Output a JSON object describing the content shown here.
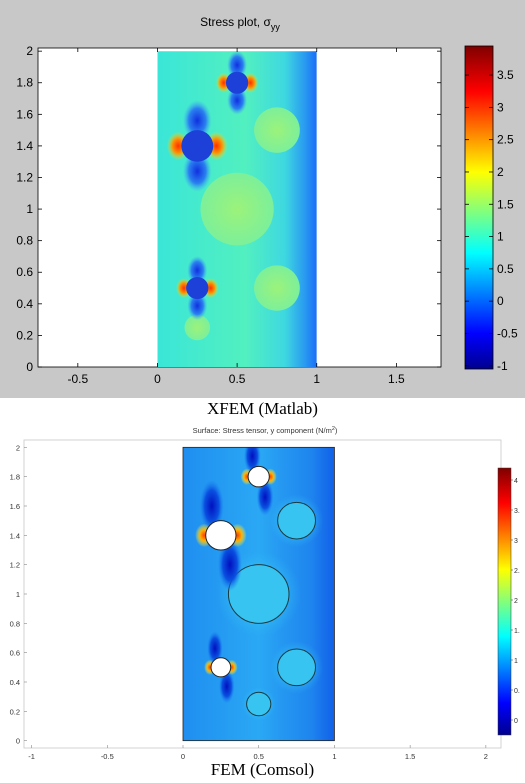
{
  "chart_data": [
    {
      "type": "heatmap",
      "title": "Stress plot, σyy",
      "title_main": "Stress plot, σ",
      "title_sub": "yy",
      "xlabel": "",
      "ylabel": "",
      "xlim": [
        -0.75,
        1.78
      ],
      "ylim": [
        0,
        2.02
      ],
      "xticks": [
        -0.5,
        0,
        0.5,
        1,
        1.5
      ],
      "xtick_labels": [
        "-0.5",
        "0",
        "0.5",
        "1",
        "1.5"
      ],
      "yticks": [
        0,
        0.2,
        0.4,
        0.6,
        0.8,
        1,
        1.2,
        1.4,
        1.6,
        1.8,
        2
      ],
      "ytick_labels": [
        "0",
        "0.2",
        "0.4",
        "0.6",
        "0.8",
        "1",
        "1.2",
        "1.4",
        "1.6",
        "1.8",
        "2"
      ],
      "domain": {
        "x": [
          0,
          1
        ],
        "y": [
          0,
          2
        ]
      },
      "holes": [
        {
          "x": 0.5,
          "y": 1.8,
          "r": 0.07
        },
        {
          "x": 0.25,
          "y": 1.4,
          "r": 0.1
        },
        {
          "x": 0.25,
          "y": 0.5,
          "r": 0.07
        }
      ],
      "inclusions": [
        {
          "x": 0.75,
          "y": 1.5,
          "r": 0.125
        },
        {
          "x": 0.5,
          "y": 1.0,
          "r": 0.2
        },
        {
          "x": 0.75,
          "y": 0.5,
          "r": 0.125
        },
        {
          "x": 0.25,
          "y": 0.25,
          "r": 0.07
        }
      ],
      "colorbar": {
        "range": [
          -1.05,
          3.95
        ],
        "ticks": [
          -1,
          -0.5,
          0,
          0.5,
          1,
          1.5,
          2,
          2.5,
          3,
          3.5
        ],
        "tick_labels": [
          "-1",
          "-0.5",
          "0",
          "0.5",
          "1",
          "1.5",
          "2",
          "2.5",
          "3",
          "3.5"
        ]
      },
      "background_color": "#c8c8c8"
    },
    {
      "type": "heatmap",
      "title": "Surface: Stress tensor, y component (N/m²)",
      "title_main": "Surface: Stress tensor, y component (N/m",
      "title_sup": "2",
      "title_end": ")",
      "xlabel": "",
      "ylabel": "",
      "xlim": [
        -1.05,
        2.1
      ],
      "ylim": [
        -0.05,
        2.05
      ],
      "xticks": [
        -1,
        -0.5,
        0,
        0.5,
        1,
        1.5,
        2
      ],
      "xtick_labels": [
        "-1",
        "-0.5",
        "0",
        "0.5",
        "1",
        "1.5",
        "2"
      ],
      "yticks": [
        0,
        0.2,
        0.4,
        0.6,
        0.8,
        1,
        1.2,
        1.4,
        1.6,
        1.8,
        2
      ],
      "ytick_labels": [
        "0",
        "0.2",
        "0.4",
        "0.6",
        "0.8",
        "1",
        "1.2",
        "1.4",
        "1.6",
        "1.8",
        "2"
      ],
      "domain": {
        "x": [
          0,
          1
        ],
        "y": [
          0,
          2
        ]
      },
      "holes": [
        {
          "x": 0.5,
          "y": 1.8,
          "r": 0.07
        },
        {
          "x": 0.25,
          "y": 1.4,
          "r": 0.1
        },
        {
          "x": 0.25,
          "y": 0.5,
          "r": 0.065
        }
      ],
      "inclusions": [
        {
          "x": 0.75,
          "y": 1.5,
          "r": 0.125
        },
        {
          "x": 0.5,
          "y": 1.0,
          "r": 0.2
        },
        {
          "x": 0.75,
          "y": 0.5,
          "r": 0.125
        },
        {
          "x": 0.5,
          "y": 0.25,
          "r": 0.08
        }
      ],
      "colorbar": {
        "range": [
          -0.25,
          4.2
        ],
        "ticks": [
          0,
          0.5,
          1,
          1.5,
          2,
          2.5,
          3,
          3.5,
          4
        ],
        "tick_labels": [
          "0",
          "0.",
          "1",
          "1.",
          "2",
          "2.",
          "3",
          "3.",
          "4"
        ]
      },
      "background_color": "#ffffff"
    }
  ],
  "captions": {
    "top": "XFEM (Matlab)",
    "bottom": "FEM (Comsol)"
  }
}
